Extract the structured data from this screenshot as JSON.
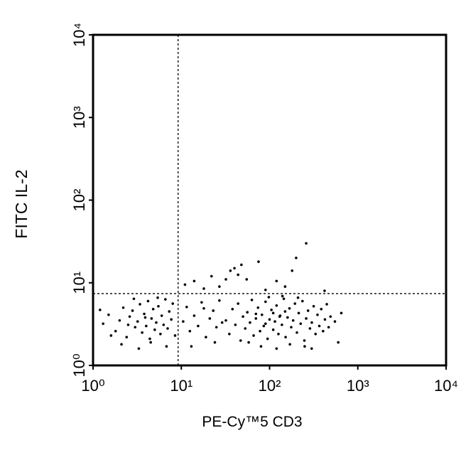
{
  "chart_data": {
    "type": "scatter",
    "xlabel": "PE-Cy™5 CD3",
    "ylabel": "FITC IL-2",
    "xscale": "log",
    "yscale": "log",
    "xlim": [
      1,
      10000
    ],
    "ylim": [
      1,
      10000
    ],
    "xticks": [
      {
        "value": 1,
        "label": "10⁰"
      },
      {
        "value": 10,
        "label": "10¹"
      },
      {
        "value": 100,
        "label": "10²"
      },
      {
        "value": 1000,
        "label": "10³"
      },
      {
        "value": 10000,
        "label": "10⁴"
      }
    ],
    "yticks": [
      {
        "value": 1,
        "label": "10⁰"
      },
      {
        "value": 10,
        "label": "10¹"
      },
      {
        "value": 100,
        "label": "10²"
      },
      {
        "value": 1000,
        "label": "10³"
      },
      {
        "value": 10000,
        "label": "10⁴"
      }
    ],
    "quadrant_lines": {
      "x": 9.2,
      "y": 7.4
    },
    "color": "#000000",
    "x": [
      1.3,
      1.5,
      1.8,
      2.0,
      2.2,
      2.4,
      2.6,
      2.8,
      3.0,
      3.2,
      3.4,
      3.6,
      3.8,
      4.0,
      4.2,
      4.4,
      4.6,
      4.8,
      5.0,
      5.2,
      5.5,
      5.8,
      6.0,
      6.3,
      6.6,
      7.0,
      7.3,
      7.7,
      8.0,
      8.5,
      2.1,
      3.3,
      4.5,
      1.6,
      2.9,
      5.4,
      1.2,
      6.8,
      3.9,
      2.5,
      10.5,
      11.5,
      12.5,
      14,
      15.5,
      17,
      19,
      21,
      23,
      25,
      27,
      29,
      13,
      18,
      24,
      32,
      35,
      38,
      41,
      44,
      47,
      50,
      53,
      56,
      60,
      63,
      66,
      70,
      74,
      78,
      82,
      86,
      90,
      95,
      100,
      105,
      110,
      115,
      120,
      126,
      132,
      138,
      145,
      152,
      160,
      168,
      176,
      185,
      194,
      204,
      214,
      225,
      236,
      248,
      260,
      273,
      287,
      301,
      316,
      332,
      349,
      366,
      385,
      404,
      424,
      445,
      467,
      490,
      80,
      120,
      170,
      250,
      600,
      550,
      650,
      58,
      98,
      140,
      210,
      300,
      110,
      130,
      90,
      150,
      70,
      11,
      14,
      18,
      22,
      27,
      32,
      36,
      40,
      44,
      48,
      55,
      75,
      120,
      180,
      200,
      260,
      90,
      150,
      420
    ],
    "values": [
      3.2,
      4.1,
      2.6,
      3.5,
      5.0,
      2.2,
      3.9,
      4.6,
      2.9,
      3.4,
      5.5,
      2.5,
      4.2,
      3.0,
      6.0,
      2.1,
      3.7,
      4.8,
      2.7,
      3.3,
      5.2,
      2.4,
      4.0,
      3.1,
      6.3,
      2.8,
      4.5,
      3.6,
      5.6,
      2.3,
      1.8,
      1.6,
      1.9,
      2.3,
      6.4,
      6.6,
      4.7,
      1.7,
      3.8,
      3.1,
      3.4,
      5.1,
      2.6,
      4.0,
      3.0,
      5.8,
      2.2,
      3.7,
      4.6,
      2.9,
      6.1,
      3.3,
      1.7,
      4.9,
      1.9,
      3.5,
      2.4,
      4.8,
      3.1,
      5.6,
      2.0,
      3.9,
      2.8,
      4.4,
      3.3,
      6.2,
      2.3,
      3.7,
      5.0,
      2.6,
      4.1,
      3.0,
      5.9,
      2.1,
      3.6,
      4.7,
      2.7,
      3.4,
      5.3,
      2.4,
      4.0,
      3.1,
      6.4,
      2.2,
      3.8,
      4.9,
      2.9,
      3.5,
      5.6,
      2.5,
      4.3,
      3.2,
      6.0,
      2.0,
      3.7,
      4.6,
      2.8,
      3.3,
      5.2,
      2.4,
      4.1,
      3.0,
      4.8,
      2.6,
      3.6,
      5.5,
      2.9,
      3.9,
      1.7,
      1.6,
      1.8,
      1.7,
      1.9,
      3.4,
      4.3,
      1.9,
      6.7,
      6.9,
      6.6,
      1.6,
      4.3,
      3.9,
      3.2,
      4.5,
      4.2,
      9.5,
      10.5,
      8.5,
      12,
      9,
      11,
      14,
      15,
      12.5,
      16.5,
      11,
      18,
      10.5,
      14,
      20,
      30,
      8.2,
      9.0,
      8.0
    ]
  }
}
